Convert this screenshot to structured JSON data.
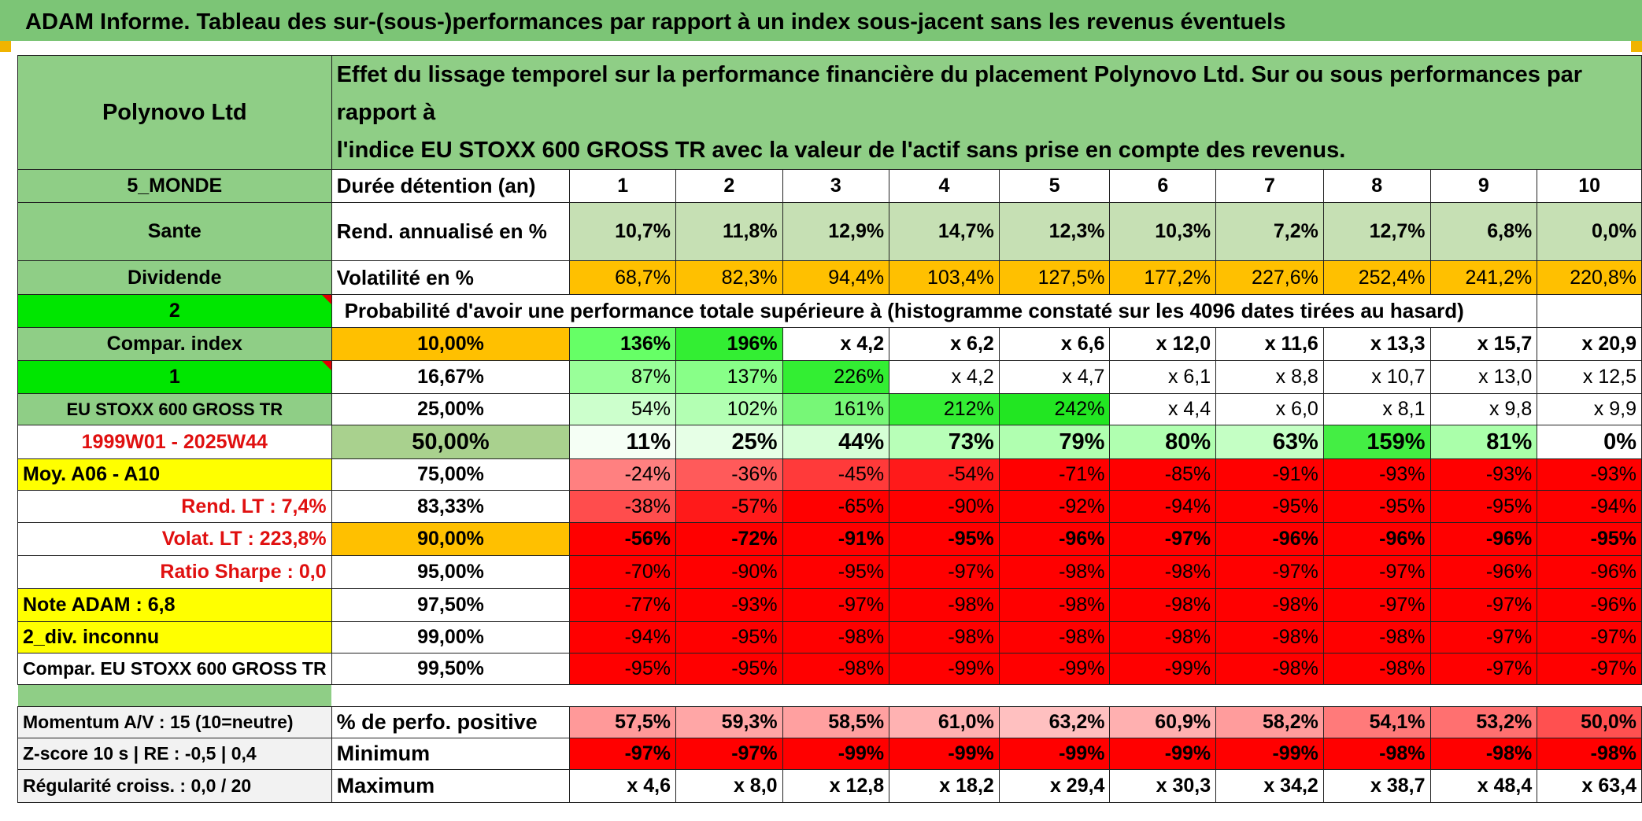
{
  "title": "ADAM Informe. Tableau des sur-(sous-)performances par rapport à un index sous-jacent sans les revenus éventuels",
  "header": {
    "asset": "Polynovo Ltd",
    "description_line1": "Effet du lissage temporel sur la performance financière du placement Polynovo Ltd. Sur ou sous performances par rapport à",
    "description_line2": "l'indice EU STOXX 600 GROSS TR avec la valeur de l'actif sans prise en compte des revenus."
  },
  "left_labels": {
    "region": "5_MONDE",
    "sector": "Sante",
    "dividend": "Dividende",
    "param1": "2",
    "compar_index": "Compar. index",
    "param2": "1",
    "index_name": "EU STOXX 600 GROSS TR",
    "period": "1999W01 - 2025W44",
    "moy": "Moy. A06 - A10",
    "rend_lt": "Rend. LT :   7,4%",
    "volat_lt": "Volat. LT :   223,8%",
    "sharpe": "Ratio Sharpe :    0,0",
    "note": "Note ADAM : 6,8",
    "div": "2_div. inconnu",
    "compar": "Compar. EU STOXX 600 GROSS TR",
    "momentum": "Momentum A/V : 15 (10=neutre)",
    "zscore": "Z-score 10 s | RE : -0,5 | 0,4",
    "regularite": "Régularité croiss. : 0,0 / 20"
  },
  "row_labels": {
    "duree": "Durée détention (an)",
    "rend": "Rend. annualisé en %",
    "volat": "Volatilité en %",
    "proba": "Probabilité d'avoir une performance totale supérieure à (histogramme constaté sur les 4096 dates tirées au hasard)",
    "positive": "% de perfo. positive",
    "minimum": "Minimum",
    "maximum": "Maximum"
  },
  "years": [
    "1",
    "2",
    "3",
    "4",
    "5",
    "6",
    "7",
    "8",
    "9",
    "10"
  ],
  "rend_annualise": [
    "10,7%",
    "11,8%",
    "12,9%",
    "14,7%",
    "12,3%",
    "10,3%",
    "7,2%",
    "12,7%",
    "6,8%",
    "0,0%"
  ],
  "volatilite": [
    "68,7%",
    "82,3%",
    "94,4%",
    "103,4%",
    "127,5%",
    "177,2%",
    "227,6%",
    "252,4%",
    "241,2%",
    "220,8%"
  ],
  "percentile_rows": [
    {
      "pct": "10,00%",
      "values": [
        "136%",
        "196%",
        "x 4,2",
        "x 6,2",
        "x 6,6",
        "x 12,0",
        "x 11,6",
        "x 13,3",
        "x 15,7",
        "x 20,9"
      ],
      "colors": [
        "#66ff66",
        "#33ee33",
        "#ffffff",
        "#ffffff",
        "#ffffff",
        "#ffffff",
        "#ffffff",
        "#ffffff",
        "#ffffff",
        "#ffffff"
      ]
    },
    {
      "pct": "16,67%",
      "values": [
        "87%",
        "137%",
        "226%",
        "x 4,2",
        "x 4,7",
        "x 6,1",
        "x 8,8",
        "x 10,7",
        "x 13,0",
        "x 12,5"
      ],
      "colors": [
        "#99ff99",
        "#88ff88",
        "#33ee33",
        "#ffffff",
        "#ffffff",
        "#ffffff",
        "#ffffff",
        "#ffffff",
        "#ffffff",
        "#ffffff"
      ]
    },
    {
      "pct": "25,00%",
      "values": [
        "54%",
        "102%",
        "161%",
        "212%",
        "242%",
        "x 4,4",
        "x 6,0",
        "x 8,1",
        "x 9,8",
        "x 9,9"
      ],
      "colors": [
        "#ccffcc",
        "#b3ffb3",
        "#77f777",
        "#33ee33",
        "#22e622",
        "#ffffff",
        "#ffffff",
        "#ffffff",
        "#ffffff",
        "#ffffff"
      ]
    },
    {
      "pct": "50,00%",
      "values": [
        "11%",
        "25%",
        "44%",
        "73%",
        "79%",
        "80%",
        "63%",
        "159%",
        "81%",
        "0%"
      ],
      "colors": [
        "#f5fff5",
        "#e6ffe6",
        "#d6ffd6",
        "#b8ffb8",
        "#b0ffb0",
        "#b0ffb0",
        "#c4ffc4",
        "#44ee44",
        "#aaffaa",
        "#ffffff"
      ]
    },
    {
      "pct": "75,00%",
      "values": [
        "-24%",
        "-36%",
        "-45%",
        "-54%",
        "-71%",
        "-85%",
        "-91%",
        "-93%",
        "-93%",
        "-93%"
      ],
      "colors": [
        "#ff8080",
        "#ff5a5a",
        "#ff3a3a",
        "#ff1a1a",
        "#ff0000",
        "#ff0000",
        "#ff0000",
        "#ff0000",
        "#ff0000",
        "#ff0000"
      ]
    },
    {
      "pct": "83,33%",
      "values": [
        "-38%",
        "-57%",
        "-65%",
        "-90%",
        "-92%",
        "-94%",
        "-95%",
        "-95%",
        "-95%",
        "-94%"
      ],
      "colors": [
        "#ff4d4d",
        "#ff1a1a",
        "#ff0000",
        "#ff0000",
        "#ff0000",
        "#ff0000",
        "#ff0000",
        "#ff0000",
        "#ff0000",
        "#ff0000"
      ]
    },
    {
      "pct": "90,00%",
      "values": [
        "-56%",
        "-72%",
        "-91%",
        "-95%",
        "-96%",
        "-97%",
        "-96%",
        "-96%",
        "-96%",
        "-95%"
      ],
      "colors": [
        "#ff0000",
        "#ff0000",
        "#ff0000",
        "#ff0000",
        "#ff0000",
        "#ff0000",
        "#ff0000",
        "#ff0000",
        "#ff0000",
        "#ff0000"
      ]
    },
    {
      "pct": "95,00%",
      "values": [
        "-70%",
        "-90%",
        "-95%",
        "-97%",
        "-98%",
        "-98%",
        "-97%",
        "-97%",
        "-96%",
        "-96%"
      ],
      "colors": [
        "#ff0000",
        "#ff0000",
        "#ff0000",
        "#ff0000",
        "#ff0000",
        "#ff0000",
        "#ff0000",
        "#ff0000",
        "#ff0000",
        "#ff0000"
      ]
    },
    {
      "pct": "97,50%",
      "values": [
        "-77%",
        "-93%",
        "-97%",
        "-98%",
        "-98%",
        "-98%",
        "-98%",
        "-97%",
        "-97%",
        "-96%"
      ],
      "colors": [
        "#ff0000",
        "#ff0000",
        "#ff0000",
        "#ff0000",
        "#ff0000",
        "#ff0000",
        "#ff0000",
        "#ff0000",
        "#ff0000",
        "#ff0000"
      ]
    },
    {
      "pct": "99,00%",
      "values": [
        "-94%",
        "-95%",
        "-98%",
        "-98%",
        "-98%",
        "-98%",
        "-98%",
        "-98%",
        "-97%",
        "-97%"
      ],
      "colors": [
        "#ff0000",
        "#ff0000",
        "#ff0000",
        "#ff0000",
        "#ff0000",
        "#ff0000",
        "#ff0000",
        "#ff0000",
        "#ff0000",
        "#ff0000"
      ]
    },
    {
      "pct": "99,50%",
      "values": [
        "-95%",
        "-95%",
        "-98%",
        "-99%",
        "-99%",
        "-99%",
        "-98%",
        "-98%",
        "-97%",
        "-97%"
      ],
      "colors": [
        "#ff0000",
        "#ff0000",
        "#ff0000",
        "#ff0000",
        "#ff0000",
        "#ff0000",
        "#ff0000",
        "#ff0000",
        "#ff0000",
        "#ff0000"
      ]
    }
  ],
  "perfo_positive": [
    "57,5%",
    "59,3%",
    "58,5%",
    "61,0%",
    "63,2%",
    "60,9%",
    "58,2%",
    "54,1%",
    "53,2%",
    "50,0%"
  ],
  "perfo_positive_colors": [
    "#ff9999",
    "#ffa6a6",
    "#ffa0a0",
    "#ffb2b2",
    "#ffc0c0",
    "#ffb0b0",
    "#ff9c9c",
    "#ff7a7a",
    "#ff7070",
    "#ff5050"
  ],
  "minimum": [
    "-97%",
    "-97%",
    "-99%",
    "-99%",
    "-99%",
    "-99%",
    "-99%",
    "-98%",
    "-98%",
    "-98%"
  ],
  "maximum": [
    "x 4,6",
    "x 8,0",
    "x 12,8",
    "x 18,2",
    "x 29,4",
    "x 30,3",
    "x 34,2",
    "x 38,7",
    "x 48,4",
    "x 63,4"
  ],
  "colors": {
    "title_bg": "#7cc576",
    "label_bg": "#8fce86",
    "rend_bg": "#c6e0b4",
    "volat_bg": "#ffc000",
    "highlight_yellow": "#ffff00",
    "bright_green": "#00e600",
    "red_text": "#e01010"
  }
}
